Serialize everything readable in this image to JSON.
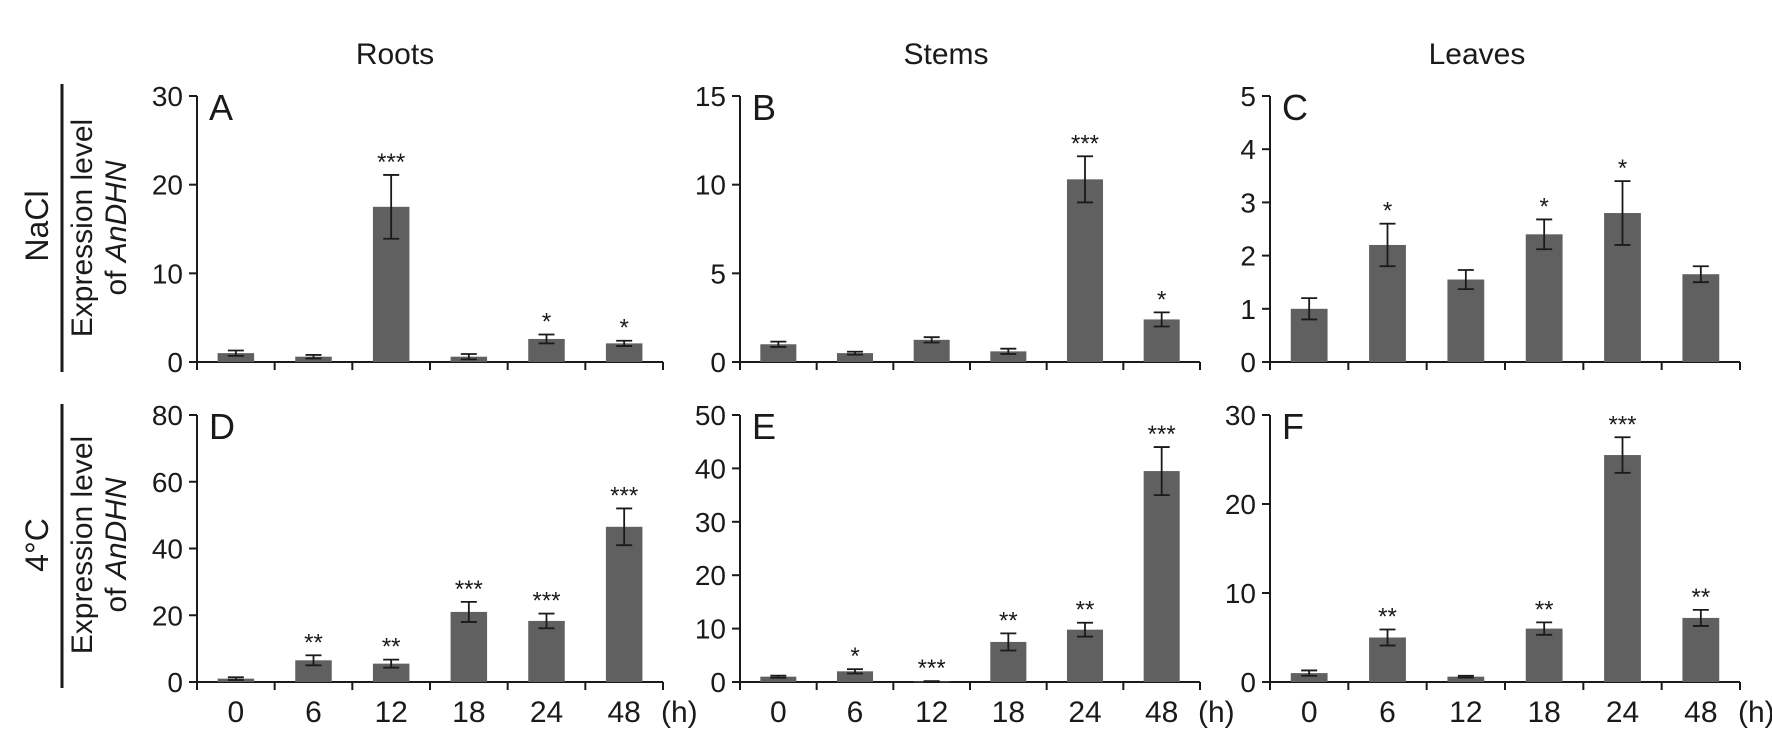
{
  "figure": {
    "column_titles": [
      "Roots",
      "Stems",
      "Leaves"
    ],
    "row_labels": [
      "NaCl",
      "4°C"
    ],
    "ylabel_line1": "Expression level",
    "ylabel_line2_prefix": "of ",
    "ylabel_line2_gene": "AnDHN",
    "x_unit": "(h)",
    "bar_color": "#606060"
  },
  "chart_data": [
    {
      "type": "bar",
      "panel": "A",
      "row": 0,
      "col": 0,
      "categories": [
        "0",
        "6",
        "12",
        "18",
        "24",
        "48"
      ],
      "values": [
        1.0,
        0.6,
        17.5,
        0.6,
        2.6,
        2.1
      ],
      "errors": [
        0.3,
        0.2,
        3.6,
        0.3,
        0.5,
        0.3
      ],
      "significance": [
        "",
        "",
        "***",
        "",
        "*",
        "*"
      ],
      "ylim": [
        0,
        30
      ],
      "yticks": [
        0,
        10,
        20,
        30
      ]
    },
    {
      "type": "bar",
      "panel": "B",
      "row": 0,
      "col": 1,
      "categories": [
        "0",
        "6",
        "12",
        "18",
        "24",
        "48"
      ],
      "values": [
        1.0,
        0.5,
        1.25,
        0.6,
        10.3,
        2.4
      ],
      "errors": [
        0.15,
        0.08,
        0.15,
        0.15,
        1.3,
        0.4
      ],
      "significance": [
        "",
        "",
        "",
        "",
        "***",
        "*"
      ],
      "ylim": [
        0,
        15
      ],
      "yticks": [
        0,
        5,
        10,
        15
      ]
    },
    {
      "type": "bar",
      "panel": "C",
      "row": 0,
      "col": 2,
      "categories": [
        "0",
        "6",
        "12",
        "18",
        "24",
        "48"
      ],
      "values": [
        1.0,
        2.2,
        1.55,
        2.4,
        2.8,
        1.65
      ],
      "errors": [
        0.2,
        0.4,
        0.18,
        0.28,
        0.6,
        0.15
      ],
      "significance": [
        "",
        "*",
        "",
        "*",
        "*",
        ""
      ],
      "ylim": [
        0,
        5
      ],
      "yticks": [
        0,
        1,
        2,
        3,
        4,
        5
      ]
    },
    {
      "type": "bar",
      "panel": "D",
      "row": 1,
      "col": 0,
      "categories": [
        "0",
        "6",
        "12",
        "18",
        "24",
        "48"
      ],
      "values": [
        1.0,
        6.5,
        5.5,
        21.0,
        18.3,
        46.5
      ],
      "errors": [
        0.4,
        1.5,
        1.2,
        3.0,
        2.2,
        5.5
      ],
      "significance": [
        "",
        "**",
        "**",
        "***",
        "***",
        "***"
      ],
      "ylim": [
        0,
        80
      ],
      "yticks": [
        0,
        20,
        40,
        60,
        80
      ]
    },
    {
      "type": "bar",
      "panel": "E",
      "row": 1,
      "col": 1,
      "categories": [
        "0",
        "6",
        "12",
        "18",
        "24",
        "48"
      ],
      "values": [
        1.0,
        2.0,
        0.1,
        7.5,
        9.8,
        39.5
      ],
      "errors": [
        0.2,
        0.4,
        0.05,
        1.6,
        1.3,
        4.5
      ],
      "significance": [
        "",
        "*",
        "***",
        "**",
        "**",
        "***"
      ],
      "ylim": [
        0,
        50
      ],
      "yticks": [
        0,
        10,
        20,
        30,
        40,
        50
      ]
    },
    {
      "type": "bar",
      "panel": "F",
      "row": 1,
      "col": 2,
      "categories": [
        "0",
        "6",
        "12",
        "18",
        "24",
        "48"
      ],
      "values": [
        1.0,
        5.0,
        0.6,
        6.0,
        25.5,
        7.2
      ],
      "errors": [
        0.3,
        0.9,
        0.1,
        0.7,
        2.0,
        0.9
      ],
      "significance": [
        "",
        "**",
        "",
        "**",
        "***",
        "**"
      ],
      "ylim": [
        0,
        30
      ],
      "yticks": [
        0,
        10,
        20,
        30
      ]
    }
  ]
}
